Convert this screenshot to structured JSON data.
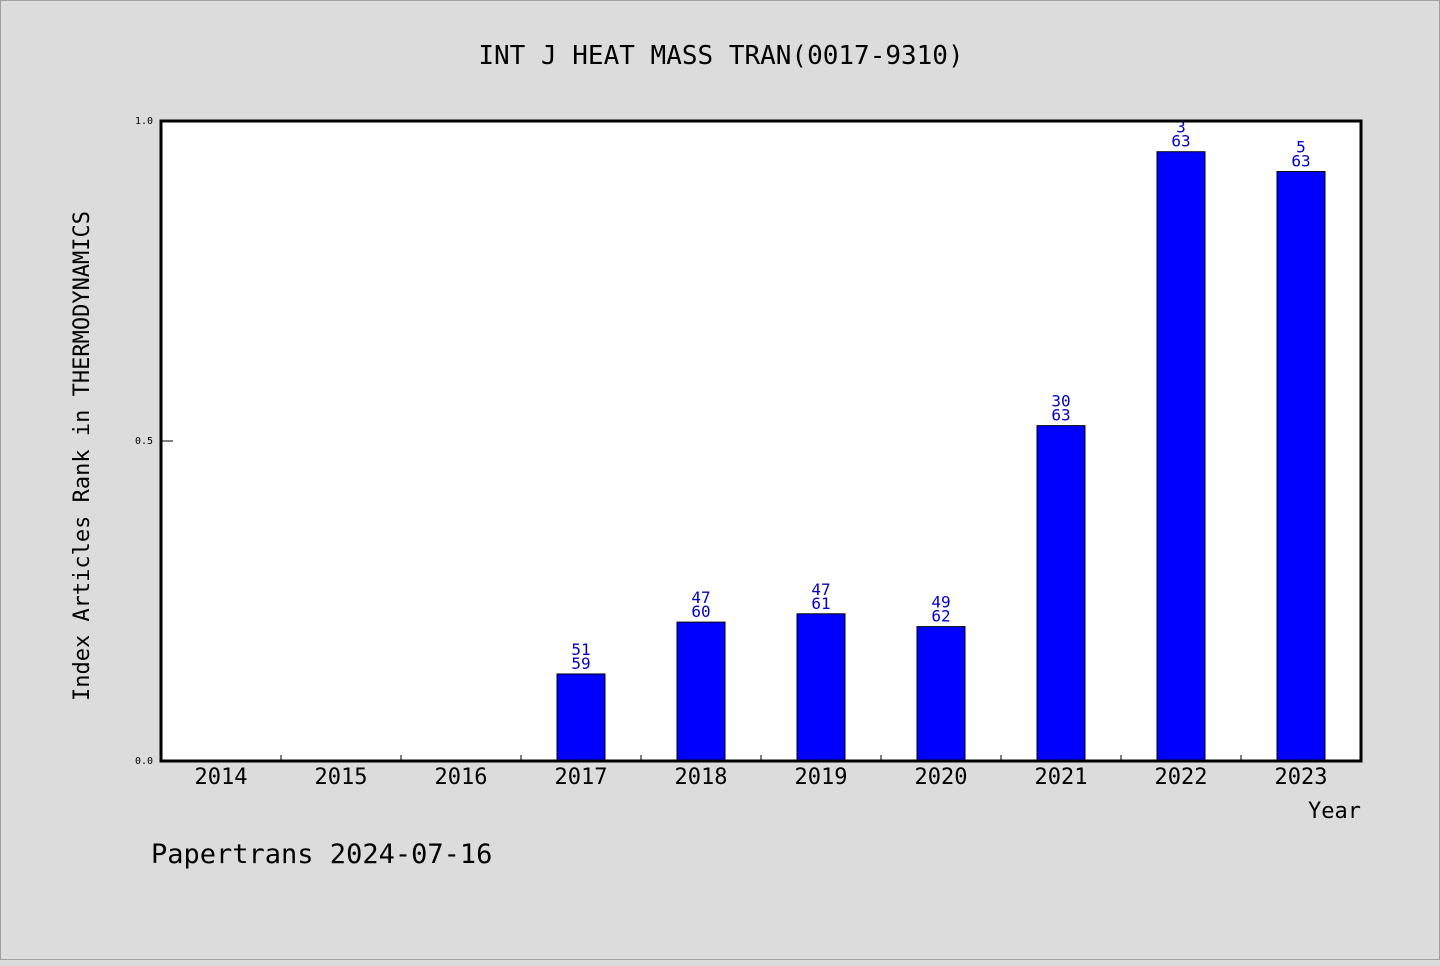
{
  "chart_data": {
    "type": "bar",
    "title": "INT J HEAT MASS TRAN(0017-9310)",
    "xlabel": "Year",
    "ylabel": "Index Articles Rank in THERMODYNAMICS",
    "categories": [
      "2014",
      "2015",
      "2016",
      "2017",
      "2018",
      "2019",
      "2020",
      "2021",
      "2022",
      "2023"
    ],
    "values": [
      0,
      0,
      0,
      0.136,
      0.217,
      0.23,
      0.21,
      0.524,
      0.952,
      0.921
    ],
    "bar_labels": [
      null,
      null,
      null,
      {
        "rank": "51",
        "total": "59"
      },
      {
        "rank": "47",
        "total": "60"
      },
      {
        "rank": "47",
        "total": "61"
      },
      {
        "rank": "49",
        "total": "62"
      },
      {
        "rank": "30",
        "total": "63"
      },
      {
        "rank": "3",
        "total": "63"
      },
      {
        "rank": "5",
        "total": "63"
      }
    ],
    "ylim": [
      0,
      1
    ],
    "yticks": [
      "0.0",
      "0.5",
      "1.0"
    ],
    "bar_color": "#0000ff",
    "label_color": "#0000cc",
    "background_color": "#dcdcdc",
    "plot_background_color": "#ffffff",
    "grid": false
  },
  "footer": "Papertrans 2024-07-16"
}
